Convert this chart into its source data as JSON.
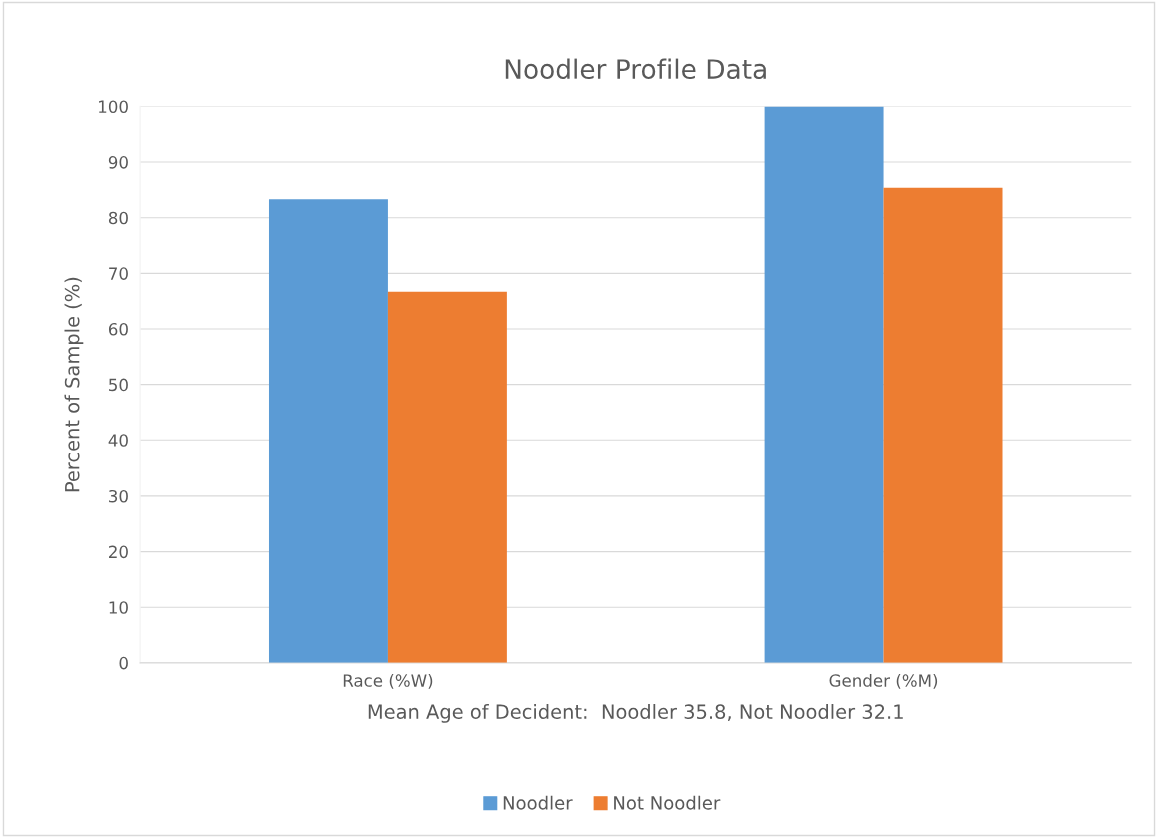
{
  "chart_data": {
    "type": "bar",
    "title": "Noodler Profile Data",
    "xlabel": "Mean Age of Decident:  Noodler 35.8, Not Noodler 32.1",
    "ylabel": "Percent of Sample (%)",
    "categories": [
      "Race (%W)",
      "Gender (%M)"
    ],
    "series": [
      {
        "name": "Noodler",
        "color": "#5b9bd5",
        "values": [
          83.3,
          100
        ]
      },
      {
        "name": "Not Noodler",
        "color": "#ed7d31",
        "values": [
          66.7,
          85.4
        ]
      }
    ],
    "ylim": [
      0,
      100
    ],
    "yticks": [
      0,
      10,
      20,
      30,
      40,
      50,
      60,
      70,
      80,
      90,
      100
    ],
    "grid": "y",
    "legend": "bottom"
  }
}
